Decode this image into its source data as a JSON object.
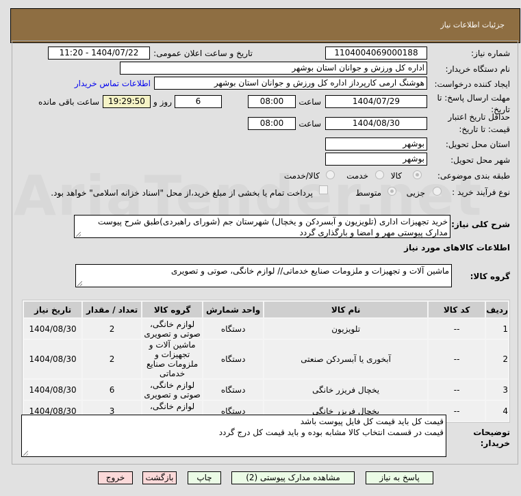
{
  "header": {
    "title": "جزئیات اطلاعات نیاز"
  },
  "form": {
    "need_number_label": "شماره نیاز:",
    "need_number": "1104004069000188",
    "announce_label": "تاریخ و ساعت اعلان عمومی:",
    "announce_value": "1404/07/22 - 11:20",
    "buyer_org_label": "نام دستگاه خریدار:",
    "buyer_org": "اداره کل ورزش و جوانان استان بوشهر",
    "creator_label": "ایجاد کننده درخواست:",
    "creator": "هوشنگ ارمی کارپرداز اداره کل ورزش و جوانان استان بوشهر",
    "contact_link": "اطلاعات تماس خریدار",
    "deadline_label_1": "مهلت ارسال پاسخ: تا",
    "deadline_label_2": "تاریخ:",
    "deadline_date": "1404/07/29",
    "time_label": "ساعت",
    "deadline_time": "08:00",
    "days": "6",
    "days_label": "روز و",
    "remaining": "19:29:50",
    "remaining_label": "ساعت باقی مانده",
    "validity_label_1": "حداقل تاریخ اعتبار",
    "validity_label_2": "قیمت: تا تاریخ:",
    "validity_date": "1404/08/30",
    "validity_time": "08:00",
    "province_label": "استان محل تحویل:",
    "province": "بوشهر",
    "city_label": "شهر محل تحویل:",
    "city": "بوشهر",
    "category_label": "طبقه بندی موضوعی:",
    "category_options": [
      {
        "label": "کالا",
        "selected": true
      },
      {
        "label": "خدمت",
        "selected": false
      },
      {
        "label": "کالا/خدمت",
        "selected": false
      }
    ],
    "process_label": "نوع فرآیند خرید :",
    "process_options": [
      {
        "label": "جزیی",
        "selected": false
      },
      {
        "label": "متوسط",
        "selected": true
      }
    ],
    "treasury_text": "پرداخت تمام یا بخشی از مبلغ خرید،از محل \"اسناد خزانه اسلامی\" خواهد بود.",
    "treasury_checked": false,
    "description_label": "شرح کلی نیاز:",
    "description": "خرید تجهیزات اداری (تلویزیون و آبسردکن و یخچال) شهرستان جم (شورای راهبردی)طبق شرح پیوست مدارک پیوستی مهر و امضا و بارگذاری گردد",
    "goods_info_title": "اطلاعات کالاهای مورد نیاز",
    "goods_group_label": "گروه کالا:",
    "goods_group": "ماشین آلات و تجهیزات و ملزومات صنایع خدماتی// لوازم خانگی، صوتی و تصویری"
  },
  "table": {
    "headers": [
      "ردیف",
      "کد کالا",
      "نام کالا",
      "واحد شمارش",
      "گروه کالا",
      "تعداد / مقدار",
      "تاریخ نیاز"
    ],
    "rows": [
      [
        "1",
        "--",
        "تلویزیون",
        "دستگاه",
        "لوازم خانگی، صوتی و تصویری",
        "2",
        "1404/08/30"
      ],
      [
        "2",
        "--",
        "آبخوری یا آبسردکن صنعتی",
        "دستگاه",
        "ماشین آلات و تجهیزات و ملزومات صنایع خدماتی",
        "2",
        "1404/08/30"
      ],
      [
        "3",
        "--",
        "یخچال فریزر خانگی",
        "دستگاه",
        "لوازم خانگی، صوتی و تصویری",
        "6",
        "1404/08/30"
      ],
      [
        "4",
        "--",
        "یخچال فریزر خانگی",
        "دستگاه",
        "لوازم خانگی، صوتی و تصویری",
        "3",
        "1404/08/30"
      ]
    ]
  },
  "notes": {
    "label_1": "توضیحات",
    "label_2": "خریدار:",
    "line_1": "قیمت کل باید قیمت کل فایل پیوست باشد",
    "line_2": "قیمت در قسمت انتخاب کالا مشابه بوده و باید قیمت کل درج گردد"
  },
  "buttons": {
    "reply": "پاسخ به نیاز",
    "attachments": "مشاهده مدارک پیوستی (2)",
    "print": "چاپ",
    "back": "بازگشت",
    "exit": "خروج"
  },
  "colors": {
    "header": "#8e6e42",
    "remaining_bg": "#f5f3c6",
    "link": "#0000ee",
    "green_button": "#ebfbe6",
    "red_button": "#fbd9d9"
  }
}
